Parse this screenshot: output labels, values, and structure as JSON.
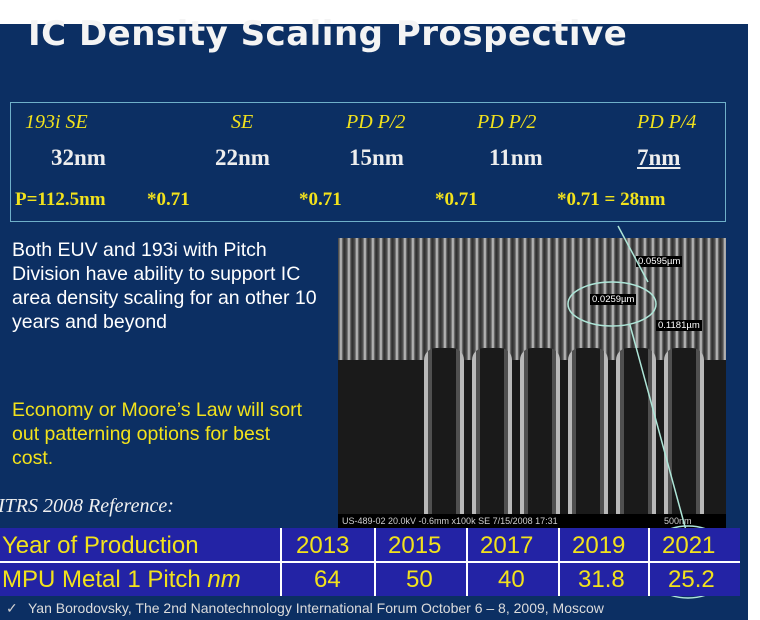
{
  "title": "IC Density Scaling Prospective",
  "nodes": [
    {
      "tech": "193i SE",
      "node": "32nm"
    },
    {
      "tech": "SE",
      "node": "22nm"
    },
    {
      "tech": "PD P/2",
      "node": "15nm"
    },
    {
      "tech": "PD P/2",
      "node": "11nm"
    },
    {
      "tech": "PD P/4",
      "node": "7nm"
    }
  ],
  "pitch_row": [
    "P=112.5nm",
    "*0.71",
    "*0.71",
    "*0.71",
    "*0.71 = 28nm"
  ],
  "paragraph1": "Both EUV and 193i with Pitch Division have ability to support IC area density scaling for an other 10 years and beyond",
  "paragraph2": "Economy or Moore’s Law will sort out patterning options for best cost.",
  "reference": "ITRS 2008 Reference:",
  "sem": {
    "measure1": "0.0595µm",
    "measure2": "0.0259µm",
    "measure3": "0.1181µm",
    "footer": "US-489-02 20.0kV -0.6mm x100k SE 7/15/2008 17:31",
    "scale": "500nm"
  },
  "table": {
    "row1_label": "Year of Production",
    "row1_values": [
      "2013",
      "2015",
      "2017",
      "2019",
      "2021"
    ],
    "row2_label": "MPU Metal 1 Pitch",
    "row2_unit": "nm",
    "row2_values": [
      "64",
      "50",
      "40",
      "31.8",
      "25.2"
    ]
  },
  "footer": "Yan Borodovsky, The 2nd Nanotechnology International Forum October 6 – 8, 2009, Moscow",
  "colors": {
    "background": "#0c2f63",
    "accent_yellow": "#f2e21c",
    "table_blue": "#2323a5",
    "box_border": "#6fb0c9"
  }
}
